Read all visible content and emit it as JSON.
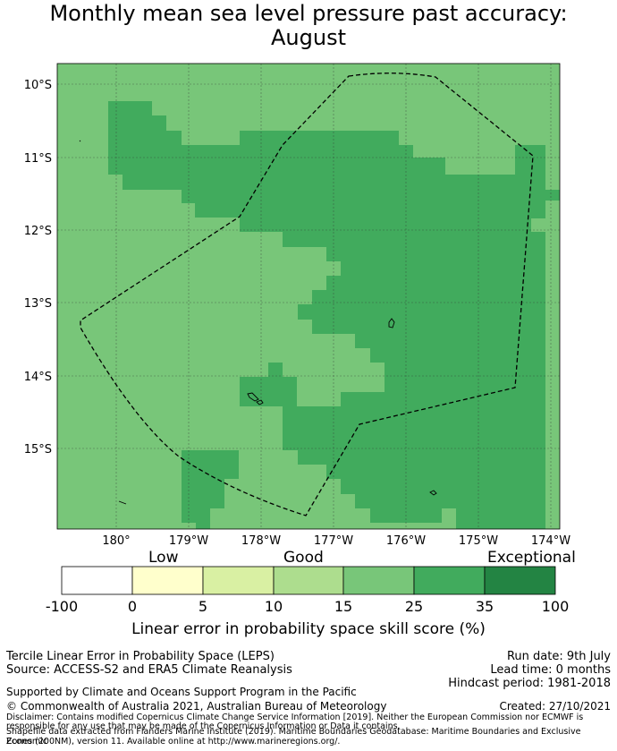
{
  "title_line1": "Monthly mean sea level pressure past accuracy:",
  "title_line2": "August",
  "map": {
    "lat_labels": [
      "10°S",
      "11°S",
      "12°S",
      "13°S",
      "14°S",
      "15°S"
    ],
    "lon_labels": [
      "180°",
      "179°W",
      "178°W",
      "177°W",
      "176°W",
      "175°W",
      "174°W"
    ]
  },
  "colorbar": {
    "category_labels": [
      "Low",
      "Good",
      "Exceptional"
    ],
    "ticks": [
      "-100",
      "0",
      "5",
      "10",
      "15",
      "25",
      "35",
      "100"
    ],
    "colors": [
      "#ffffff",
      "#ffffcc",
      "#d9f0a3",
      "#addd8e",
      "#78c679",
      "#41ab5d",
      "#238443"
    ],
    "label": "Linear error in probability space skill score (%)"
  },
  "footer": {
    "method": "Tercile Linear Error in Probability Space (LEPS)",
    "source": "Source: ACCESS-S2 and ERA5 Climate Reanalysis",
    "run_date": "Run date: 9th July",
    "lead_time": "Lead time: 0 months",
    "hindcast": "Hindcast period: 1981-2018",
    "support": "Supported by Climate and Oceans Support Program in the Pacific",
    "copyright": "© Commonwealth of Australia 2021, Australian Bureau of Meteorology",
    "created": "Created: 27/10/2021",
    "disclaimer1": "Disclaimer: Contains modified Copernicus Climate Change Service Information [2019]. Neither the European Commission nor ECMWF is",
    "disclaimer2": "responsible for any use that may be made of the Copernicus Information or Data it contains.",
    "shapefile1": "Shapefile data extracted from Flanders Marine Institute (2019). Maritime Boundaries Geodatabase: Maritime Boundaries and Exclusive Economic",
    "shapefile2": "Zones (200NM), version 11. Available online at http://www.marineregions.org/."
  }
}
